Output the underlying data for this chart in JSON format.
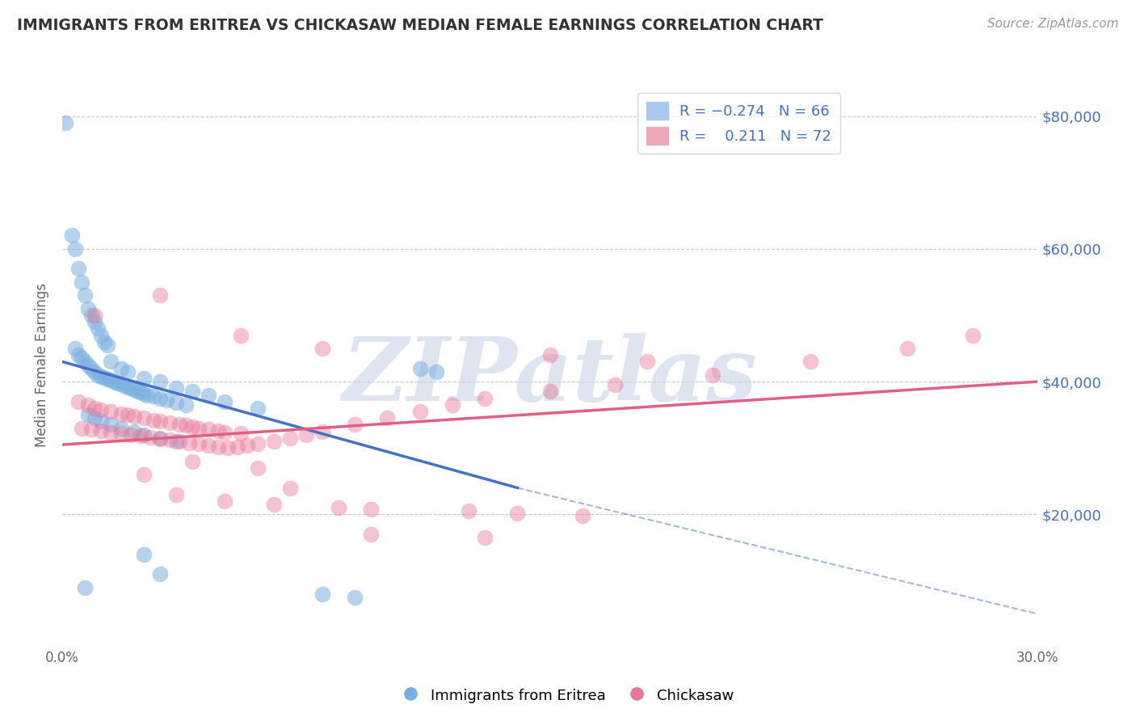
{
  "title": "IMMIGRANTS FROM ERITREA VS CHICKASAW MEDIAN FEMALE EARNINGS CORRELATION CHART",
  "source_text": "Source: ZipAtlas.com",
  "ylabel": "Median Female Earnings",
  "xlim": [
    0.0,
    0.3
  ],
  "ylim": [
    0,
    85000
  ],
  "yticks": [
    0,
    20000,
    40000,
    60000,
    80000
  ],
  "ytick_labels": [
    "",
    "$20,000",
    "$40,000",
    "$60,000",
    "$80,000"
  ],
  "xtick_labels": [
    "0.0%",
    "",
    "",
    "",
    "",
    "",
    "30.0%"
  ],
  "blue_scatter": [
    [
      0.001,
      79000
    ],
    [
      0.003,
      62000
    ],
    [
      0.004,
      60000
    ],
    [
      0.005,
      57000
    ],
    [
      0.006,
      55000
    ],
    [
      0.007,
      53000
    ],
    [
      0.008,
      51000
    ],
    [
      0.009,
      50000
    ],
    [
      0.01,
      49000
    ],
    [
      0.011,
      48000
    ],
    [
      0.012,
      47000
    ],
    [
      0.013,
      46000
    ],
    [
      0.014,
      45500
    ],
    [
      0.004,
      45000
    ],
    [
      0.005,
      44000
    ],
    [
      0.006,
      43500
    ],
    [
      0.007,
      43000
    ],
    [
      0.008,
      42500
    ],
    [
      0.009,
      42000
    ],
    [
      0.01,
      41500
    ],
    [
      0.011,
      41000
    ],
    [
      0.012,
      40800
    ],
    [
      0.013,
      40600
    ],
    [
      0.014,
      40400
    ],
    [
      0.015,
      40200
    ],
    [
      0.016,
      40000
    ],
    [
      0.017,
      39800
    ],
    [
      0.018,
      39600
    ],
    [
      0.019,
      39400
    ],
    [
      0.02,
      39200
    ],
    [
      0.021,
      39000
    ],
    [
      0.022,
      38800
    ],
    [
      0.023,
      38600
    ],
    [
      0.024,
      38400
    ],
    [
      0.025,
      38200
    ],
    [
      0.026,
      38000
    ],
    [
      0.028,
      37800
    ],
    [
      0.03,
      37500
    ],
    [
      0.032,
      37200
    ],
    [
      0.035,
      36800
    ],
    [
      0.038,
      36500
    ],
    [
      0.015,
      43000
    ],
    [
      0.018,
      42000
    ],
    [
      0.02,
      41500
    ],
    [
      0.025,
      40500
    ],
    [
      0.03,
      40000
    ],
    [
      0.035,
      39000
    ],
    [
      0.04,
      38500
    ],
    [
      0.045,
      38000
    ],
    [
      0.05,
      37000
    ],
    [
      0.06,
      36000
    ],
    [
      0.008,
      35000
    ],
    [
      0.01,
      34500
    ],
    [
      0.012,
      34000
    ],
    [
      0.015,
      33500
    ],
    [
      0.018,
      33000
    ],
    [
      0.022,
      32500
    ],
    [
      0.025,
      32000
    ],
    [
      0.03,
      31500
    ],
    [
      0.035,
      31000
    ],
    [
      0.11,
      42000
    ],
    [
      0.115,
      41500
    ],
    [
      0.025,
      14000
    ],
    [
      0.03,
      11000
    ],
    [
      0.007,
      9000
    ],
    [
      0.08,
      8000
    ],
    [
      0.09,
      7500
    ]
  ],
  "pink_scatter": [
    [
      0.005,
      37000
    ],
    [
      0.008,
      36500
    ],
    [
      0.01,
      36000
    ],
    [
      0.012,
      35800
    ],
    [
      0.015,
      35500
    ],
    [
      0.018,
      35200
    ],
    [
      0.02,
      35000
    ],
    [
      0.022,
      34800
    ],
    [
      0.025,
      34500
    ],
    [
      0.028,
      34200
    ],
    [
      0.03,
      34000
    ],
    [
      0.033,
      33800
    ],
    [
      0.036,
      33600
    ],
    [
      0.038,
      33400
    ],
    [
      0.04,
      33200
    ],
    [
      0.042,
      33000
    ],
    [
      0.045,
      32800
    ],
    [
      0.048,
      32600
    ],
    [
      0.05,
      32400
    ],
    [
      0.055,
      32200
    ],
    [
      0.006,
      33000
    ],
    [
      0.009,
      32800
    ],
    [
      0.012,
      32600
    ],
    [
      0.015,
      32400
    ],
    [
      0.018,
      32200
    ],
    [
      0.021,
      32000
    ],
    [
      0.024,
      31800
    ],
    [
      0.027,
      31600
    ],
    [
      0.03,
      31400
    ],
    [
      0.033,
      31200
    ],
    [
      0.036,
      31000
    ],
    [
      0.039,
      30800
    ],
    [
      0.042,
      30600
    ],
    [
      0.045,
      30400
    ],
    [
      0.048,
      30200
    ],
    [
      0.051,
      30000
    ],
    [
      0.054,
      30200
    ],
    [
      0.057,
      30400
    ],
    [
      0.06,
      30600
    ],
    [
      0.065,
      31000
    ],
    [
      0.07,
      31500
    ],
    [
      0.075,
      32000
    ],
    [
      0.08,
      32500
    ],
    [
      0.09,
      33500
    ],
    [
      0.1,
      34500
    ],
    [
      0.11,
      35500
    ],
    [
      0.12,
      36500
    ],
    [
      0.13,
      37500
    ],
    [
      0.15,
      38500
    ],
    [
      0.17,
      39500
    ],
    [
      0.2,
      41000
    ],
    [
      0.23,
      43000
    ],
    [
      0.26,
      45000
    ],
    [
      0.28,
      47000
    ],
    [
      0.03,
      53000
    ],
    [
      0.01,
      50000
    ],
    [
      0.055,
      47000
    ],
    [
      0.08,
      45000
    ],
    [
      0.15,
      44000
    ],
    [
      0.18,
      43000
    ],
    [
      0.04,
      28000
    ],
    [
      0.06,
      27000
    ],
    [
      0.025,
      26000
    ],
    [
      0.07,
      24000
    ],
    [
      0.035,
      23000
    ],
    [
      0.05,
      22000
    ],
    [
      0.065,
      21500
    ],
    [
      0.085,
      21000
    ],
    [
      0.095,
      20800
    ],
    [
      0.125,
      20500
    ],
    [
      0.14,
      20200
    ],
    [
      0.16,
      19800
    ],
    [
      0.095,
      17000
    ],
    [
      0.13,
      16500
    ]
  ],
  "blue_line_solid": {
    "x0": 0.0,
    "y0": 43000,
    "x1": 0.14,
    "y1": 24000
  },
  "blue_line_dash": {
    "x0": 0.14,
    "y0": 24000,
    "x1": 0.3,
    "y1": 5000
  },
  "pink_line": {
    "x0": 0.0,
    "y0": 30500,
    "x1": 0.3,
    "y1": 40000
  },
  "watermark": "ZIPatlas",
  "bg_color": "#ffffff",
  "grid_color": "#c8c8c8",
  "scatter_blue_color": "#7ab0e0",
  "scatter_pink_color": "#e87898",
  "line_blue_color": "#4472c4",
  "line_pink_color": "#e06080",
  "title_color": "#333333",
  "axis_label_color": "#666666",
  "watermark_color": "#c8d4e8",
  "right_axis_color": "#4472c4"
}
